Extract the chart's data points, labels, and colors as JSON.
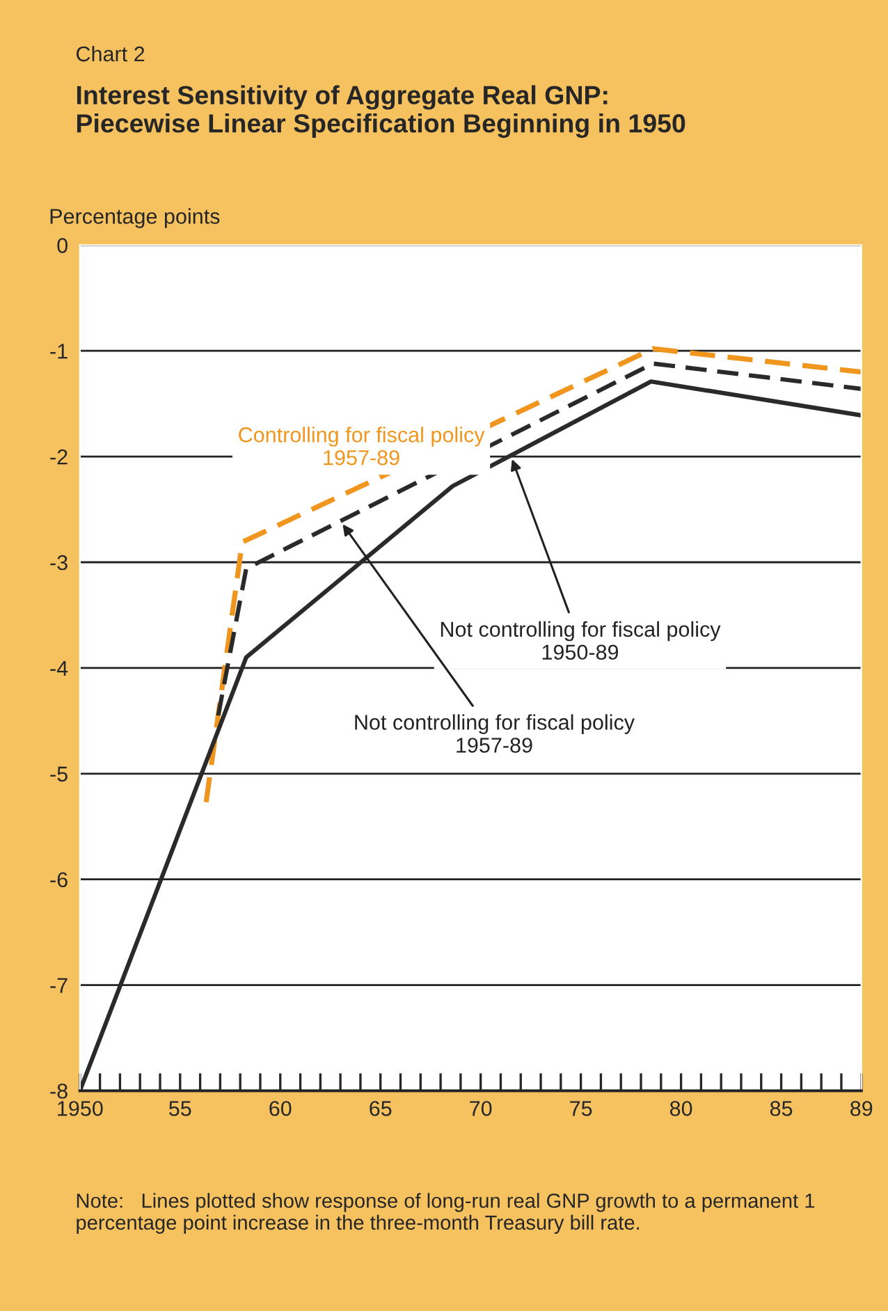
{
  "chart_data": {
    "type": "line",
    "title": "Chart 2",
    "subtitle": "Interest Sensitivity of Aggregate Real GNP:\nPiecewise Linear Specification Beginning in 1950",
    "ylabel": "Percentage points",
    "series": [
      {
        "name": "Controlling for fiscal policy\n1957-89",
        "color": "#f0961e",
        "line_style": "dashed",
        "x": [
          1956.3,
          1958.1,
          1978.6,
          1989
        ],
        "values": [
          -5.27,
          -2.81,
          -0.98,
          -1.2
        ]
      },
      {
        "color": "#2a2a2a",
        "line_style": "dashed",
        "x": [
          1956.9,
          1958.3,
          1978.6,
          1989
        ],
        "values": [
          -4.45,
          -3.06,
          -1.12,
          -1.36
        ]
      },
      {
        "color": "#2a2a2a",
        "line_style": "solid",
        "x": [
          1950,
          1958.3,
          1968.6,
          1978.5,
          1989
        ],
        "values": [
          -8,
          -3.9,
          -2.28,
          -1.29,
          -1.61
        ]
      }
    ],
    "xlim": [
      1950,
      1989
    ],
    "ylim": [
      -8,
      0
    ],
    "xticks": [
      {
        "value": 1950,
        "label": "1950"
      },
      {
        "value": 1955,
        "label": "55"
      },
      {
        "value": 1960,
        "label": "60"
      },
      {
        "value": 1965,
        "label": "65"
      },
      {
        "value": 1970,
        "label": "70"
      },
      {
        "value": 1975,
        "label": "75"
      },
      {
        "value": 1980,
        "label": "80"
      },
      {
        "value": 1985,
        "label": "85"
      },
      {
        "value": 1989,
        "label": "89"
      },
      {
        "value": 1951,
        "label": null
      },
      {
        "value": 1952,
        "label": null
      },
      {
        "value": 1953,
        "label": null
      },
      {
        "value": 1954,
        "label": null
      },
      {
        "value": 1956,
        "label": null
      },
      {
        "value": 1957,
        "label": null
      },
      {
        "value": 1958,
        "label": null
      },
      {
        "value": 1959,
        "label": null
      },
      {
        "value": 1961,
        "label": null
      },
      {
        "value": 1962,
        "label": null
      },
      {
        "value": 1963,
        "label": null
      },
      {
        "value": 1964,
        "label": null
      },
      {
        "value": 1966,
        "label": null
      },
      {
        "value": 1967,
        "label": null
      },
      {
        "value": 1968,
        "label": null
      },
      {
        "value": 1969,
        "label": null
      },
      {
        "value": 1971,
        "label": null
      },
      {
        "value": 1972,
        "label": null
      },
      {
        "value": 1973,
        "label": null
      },
      {
        "value": 1974,
        "label": null
      },
      {
        "value": 1976,
        "label": null
      },
      {
        "value": 1977,
        "label": null
      },
      {
        "value": 1978,
        "label": null
      },
      {
        "value": 1979,
        "label": null
      },
      {
        "value": 1981,
        "label": null
      },
      {
        "value": 1982,
        "label": null
      },
      {
        "value": 1983,
        "label": null
      },
      {
        "value": 1984,
        "label": null
      },
      {
        "value": 1986,
        "label": null
      },
      {
        "value": 1987,
        "label": null
      },
      {
        "value": 1988,
        "label": null
      }
    ],
    "yticks": [
      0,
      -1,
      -2,
      -3,
      -4,
      -5,
      -6,
      -7,
      -8
    ],
    "grid": "y",
    "legend": false,
    "marker": "none",
    "annotations": [
      {
        "text": "Not controlling for fiscal policy\n1950-89",
        "x": 1971.5,
        "y": -1.99
      },
      {
        "text": "Not controlling for fiscal policy\n1957-89",
        "x": 1963,
        "y": -2.61
      },
      "Note:   Lines plotted show response of long-run real GNP growth to a permanent 1 percentage point increase in the three-month Treasury bill rate."
    ]
  }
}
